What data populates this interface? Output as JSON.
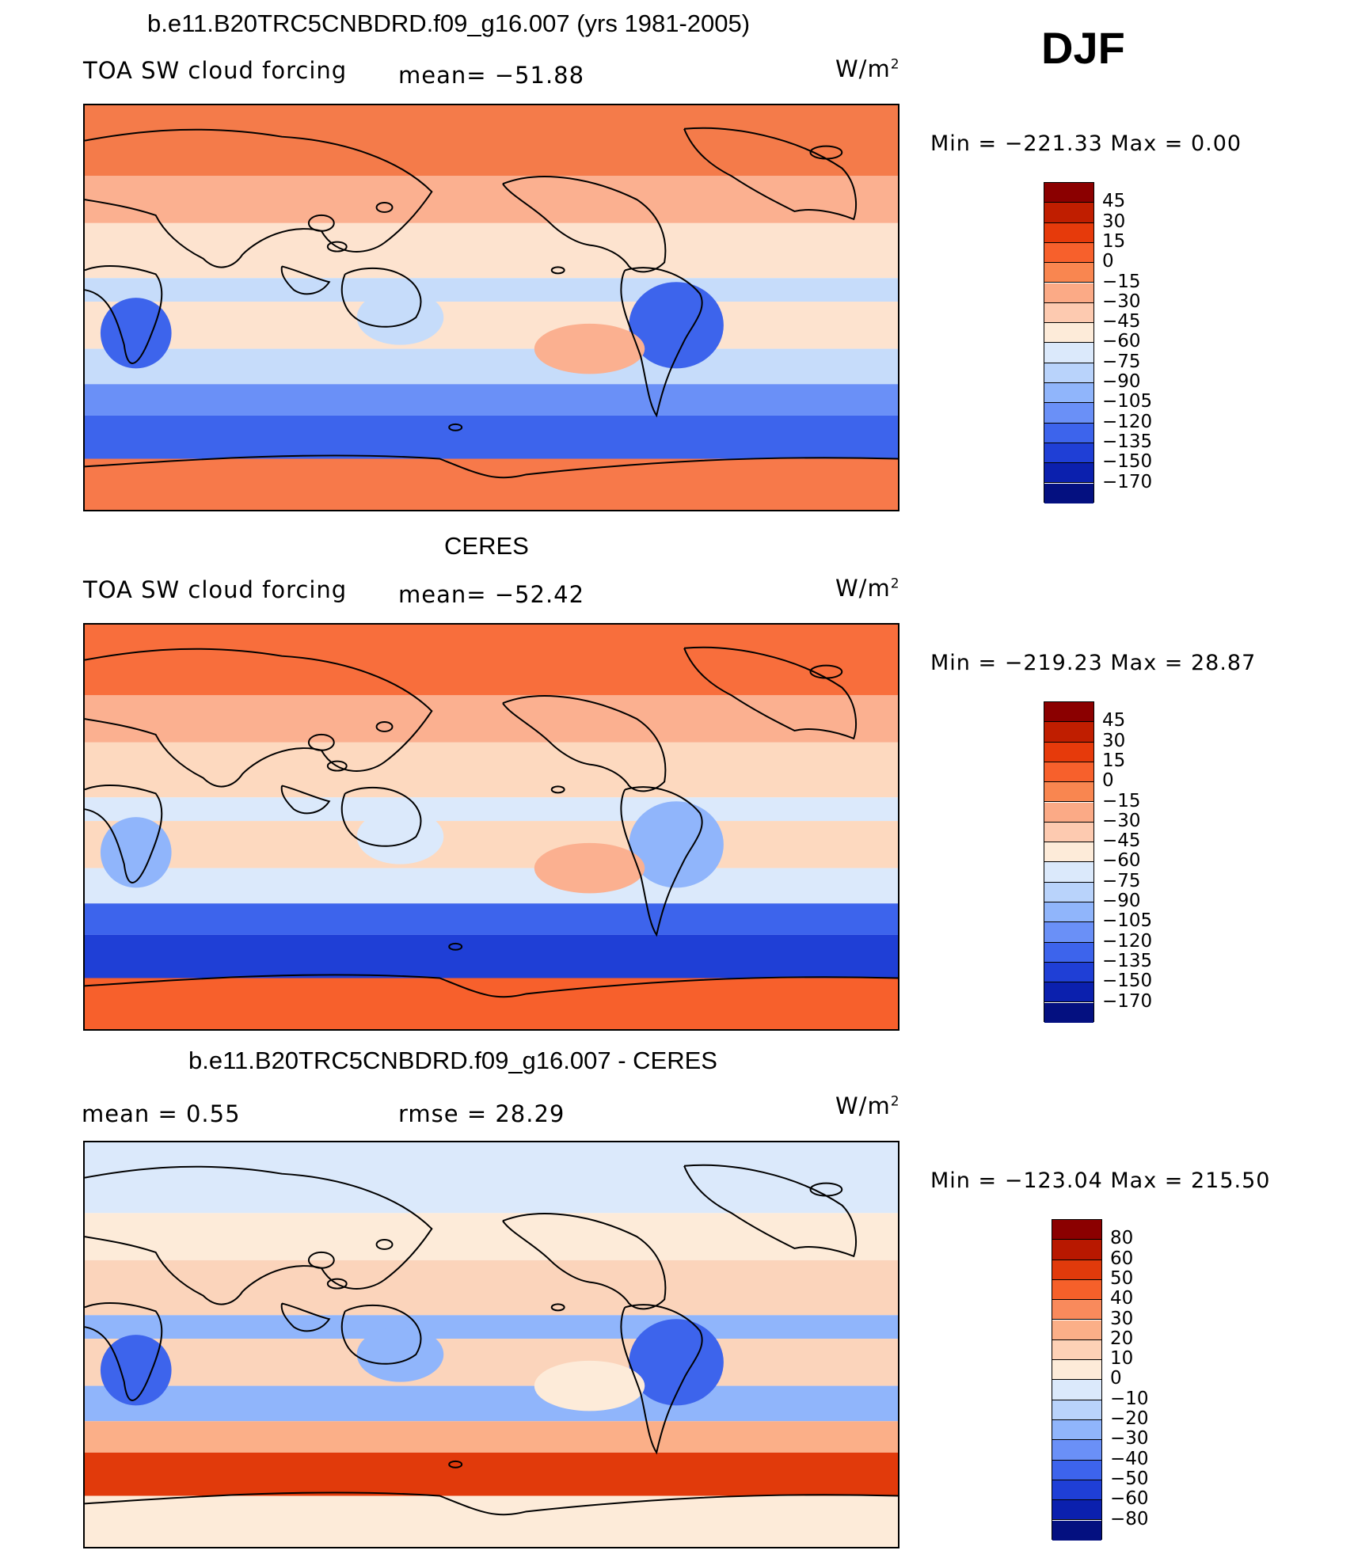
{
  "season": "DJF",
  "chart_data": [
    {
      "type": "heatmap",
      "title": "b.e11.B20TRC5CNBDRD.f09_g16.007 (yrs 1981-2005)",
      "left_label": "TOA SW cloud forcing",
      "center_label": "mean= −51.88",
      "units": "W/m",
      "units_exp": "2",
      "stats": "Min  =  −221.33  Max  =     0.00",
      "min": -221.33,
      "max": 0.0,
      "mean": -51.88,
      "colorbar": {
        "levels": [
          "45",
          "30",
          "15",
          "0",
          "−15",
          "−30",
          "−45",
          "−60",
          "−75",
          "−90",
          "−105",
          "−120",
          "−135",
          "−150",
          "−170"
        ],
        "colors": [
          "#8b0000",
          "#c01e00",
          "#e63a0b",
          "#f7602c",
          "#f98650",
          "#fbaa86",
          "#fdcab0",
          "#fdebd9",
          "#dbe9fb",
          "#b9d3fb",
          "#90b5fb",
          "#6a90f7",
          "#3d64ec",
          "#1f3fd6",
          "#0b20ae",
          "#041080"
        ]
      },
      "field_colors": {
        "land_lo": "#f7794a",
        "high": "#f47b4a",
        "sub": "#fbb090",
        "mid": "#fde3cf",
        "itcz": "#c6dcfa",
        "so1": "#6a90f7",
        "so2": "#3d64ec",
        "cont": "#3d64ec"
      }
    },
    {
      "type": "heatmap",
      "title": "CERES",
      "left_label": "TOA SW cloud forcing",
      "center_label": "mean= −52.42",
      "units": "W/m",
      "units_exp": "2",
      "stats": "Min  =  −219.23  Max  =    28.87",
      "min": -219.23,
      "max": 28.87,
      "mean": -52.42,
      "colorbar": {
        "levels": [
          "45",
          "30",
          "15",
          "0",
          "−15",
          "−30",
          "−45",
          "−60",
          "−75",
          "−90",
          "−105",
          "−120",
          "−135",
          "−150",
          "−170"
        ],
        "colors": [
          "#8b0000",
          "#c01e00",
          "#e63a0b",
          "#f7602c",
          "#f98650",
          "#fbaa86",
          "#fdcab0",
          "#fdebd9",
          "#dbe9fb",
          "#b9d3fb",
          "#90b5fb",
          "#6a90f7",
          "#3d64ec",
          "#1f3fd6",
          "#0b20ae",
          "#041080"
        ]
      },
      "field_colors": {
        "land_lo": "#f7602c",
        "high": "#f86e3c",
        "sub": "#fbb090",
        "mid": "#fdd9bf",
        "itcz": "#dbe9fb",
        "so1": "#3d64ec",
        "so2": "#1f3fd6",
        "cont": "#90b5fb"
      }
    },
    {
      "type": "heatmap",
      "title": "b.e11.B20TRC5CNBDRD.f09_g16.007 - CERES",
      "left_label": "mean =     0.55",
      "center_label": "rmse =    28.29",
      "units": "W/m",
      "units_exp": "2",
      "stats": "Min  =  −123.04  Max  =  215.50",
      "min": -123.04,
      "max": 215.5,
      "mean": 0.55,
      "rmse": 28.29,
      "colorbar": {
        "levels": [
          "80",
          "60",
          "50",
          "40",
          "30",
          "20",
          "10",
          "0",
          "−10",
          "−20",
          "−30",
          "−40",
          "−50",
          "−60",
          "−80"
        ],
        "colors": [
          "#8b0000",
          "#b81800",
          "#e13a0b",
          "#f5602a",
          "#f98a5c",
          "#fbaf88",
          "#fdd1b6",
          "#fdebd9",
          "#dbe9fb",
          "#b9d3fb",
          "#90b5fb",
          "#6a90f7",
          "#3d64ec",
          "#1f3fd6",
          "#0b20ae",
          "#041080"
        ]
      },
      "field_colors": {
        "land_lo": "#fdebd9",
        "high": "#dbe9fb",
        "sub": "#fdebd9",
        "mid": "#fbd4bb",
        "itcz": "#90b5fb",
        "so1": "#fbaf88",
        "so2": "#e13a0b",
        "cont": "#3d64ec"
      }
    }
  ]
}
